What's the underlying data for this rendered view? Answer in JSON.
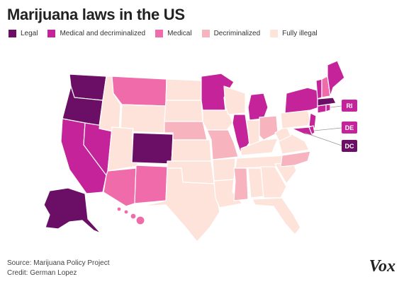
{
  "title": "Marijuana laws in the US",
  "colors": {
    "legal": "#6b0f66",
    "medical_decrim": "#c4239a",
    "medical": "#f06ba9",
    "decriminalized": "#f7b3be",
    "illegal": "#fde3d9"
  },
  "legend": [
    {
      "label": "Legal",
      "color": "#6b0f66"
    },
    {
      "label": "Medical and decriminalized",
      "color": "#c4239a"
    },
    {
      "label": "Medical",
      "color": "#f06ba9"
    },
    {
      "label": "Decriminalized",
      "color": "#f7b3be"
    },
    {
      "label": "Fully illegal",
      "color": "#fde3d9"
    }
  ],
  "callouts": {
    "ri": "RI",
    "de": "DE",
    "dc": "DC"
  },
  "footer": {
    "source": "Source: Marijuana Policy Project",
    "credit": "Credit: German Lopez"
  },
  "brand": "Vox"
}
